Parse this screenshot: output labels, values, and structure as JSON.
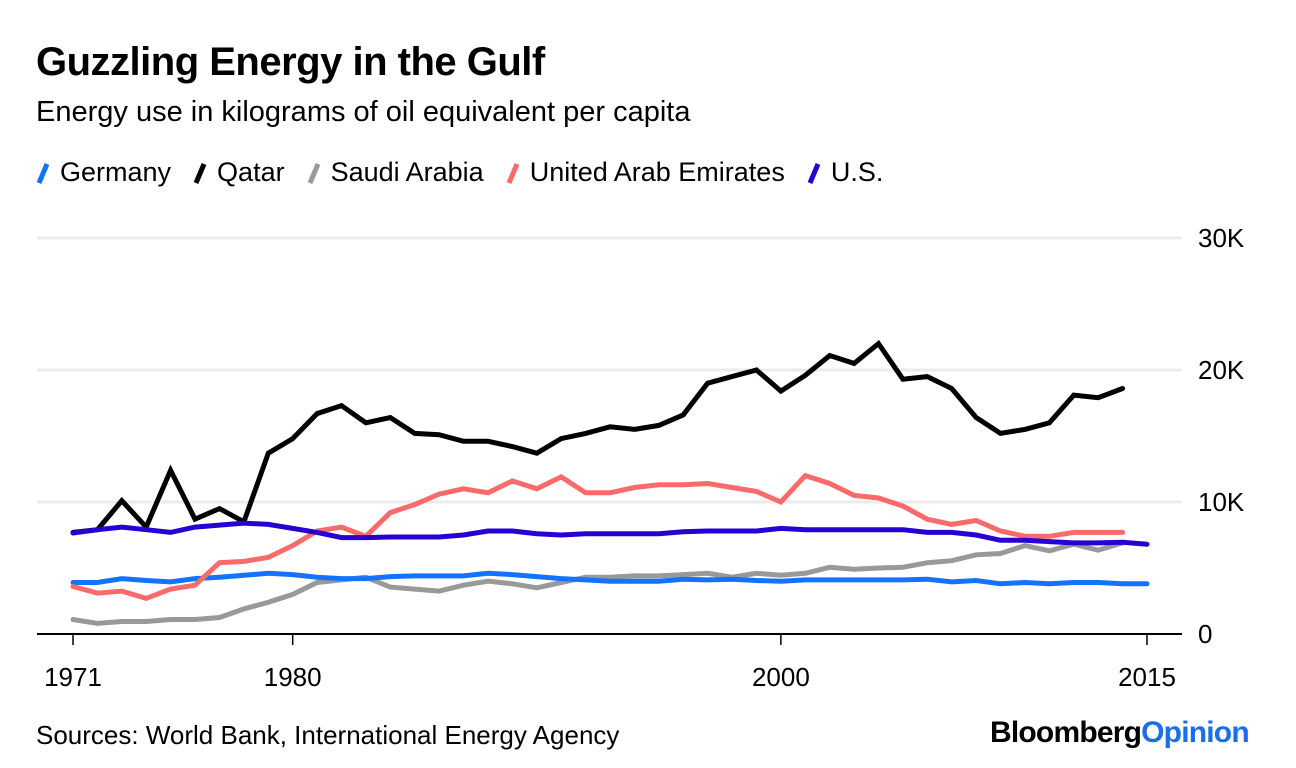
{
  "header": {
    "title": "Guzzling Energy in the Gulf",
    "subtitle": "Energy use in kilograms of oil equivalent per capita"
  },
  "footer": {
    "source": "Sources: World Bank, International Energy Agency",
    "brand_primary": "Bloomberg",
    "brand_secondary": "Opinion",
    "brand_secondary_color": "#1a6cf0"
  },
  "chart_data": {
    "type": "line",
    "title": "Guzzling Energy in the Gulf",
    "subtitle": "Energy use in kilograms of oil equivalent per capita",
    "xlabel": "",
    "ylabel": "",
    "xlim": [
      1971,
      2015
    ],
    "ylim": [
      0,
      30000
    ],
    "x_ticks": [
      1971,
      1980,
      2000,
      2015
    ],
    "x_tick_labels": [
      "1971",
      "1980",
      "2000",
      "2015"
    ],
    "y_ticks": [
      0,
      10000,
      20000,
      30000
    ],
    "y_tick_labels": [
      "0",
      "10K",
      "20K",
      "30K"
    ],
    "y_axis_side": "right",
    "grid": true,
    "legend_position": "top-left",
    "x": [
      1971,
      1972,
      1973,
      1974,
      1975,
      1976,
      1977,
      1978,
      1979,
      1980,
      1981,
      1982,
      1983,
      1984,
      1985,
      1986,
      1987,
      1988,
      1989,
      1990,
      1991,
      1992,
      1993,
      1994,
      1995,
      1996,
      1997,
      1998,
      1999,
      2000,
      2001,
      2002,
      2003,
      2004,
      2005,
      2006,
      2007,
      2008,
      2009,
      2010,
      2011,
      2012,
      2013,
      2014,
      2015
    ],
    "series": [
      {
        "name": "Germany",
        "color": "#1373ff",
        "values": [
          3900,
          3900,
          4200,
          4050,
          3950,
          4200,
          4300,
          4450,
          4600,
          4500,
          4300,
          4200,
          4200,
          4350,
          4400,
          4400,
          4400,
          4600,
          4500,
          4350,
          4200,
          4100,
          4000,
          4000,
          4000,
          4150,
          4100,
          4150,
          4050,
          4000,
          4100,
          4100,
          4100,
          4100,
          4100,
          4150,
          3950,
          4050,
          3800,
          3900,
          3800,
          3900,
          3900,
          3800,
          3800
        ]
      },
      {
        "name": "Qatar",
        "color": "#000000",
        "values": [
          7700,
          7900,
          10100,
          8100,
          12400,
          8700,
          9500,
          8500,
          13700,
          14800,
          16700,
          17300,
          16000,
          16400,
          15200,
          15100,
          14600,
          14600,
          14200,
          13700,
          14800,
          15200,
          15700,
          15500,
          15800,
          16600,
          19000,
          19500,
          20000,
          18400,
          19600,
          21100,
          20500,
          22000,
          19300,
          19500,
          18600,
          16400,
          15200,
          15500,
          16000,
          18100,
          17900,
          18600,
          null
        ]
      },
      {
        "name": "Saudi Arabia",
        "color": "#999999",
        "values": [
          1100,
          800,
          950,
          950,
          1100,
          1100,
          1250,
          1900,
          2400,
          3000,
          3900,
          4100,
          4300,
          3550,
          3400,
          3250,
          3700,
          4000,
          3800,
          3500,
          3900,
          4300,
          4300,
          4400,
          4400,
          4500,
          4600,
          4300,
          4600,
          4450,
          4600,
          5050,
          4900,
          5000,
          5050,
          5400,
          5550,
          6000,
          6100,
          6700,
          6300,
          6800,
          6350,
          6900,
          null
        ]
      },
      {
        "name": "United Arab Emirates",
        "color": "#f96b6b",
        "values": [
          3600,
          3100,
          3250,
          2700,
          3400,
          3700,
          5400,
          5500,
          5800,
          6700,
          7800,
          8100,
          7400,
          9200,
          9800,
          10600,
          11000,
          10700,
          11600,
          11000,
          11900,
          10700,
          10700,
          11100,
          11300,
          11300,
          11400,
          11100,
          10800,
          10000,
          12000,
          11400,
          10500,
          10300,
          9700,
          8700,
          8300,
          8600,
          7800,
          7400,
          7400,
          7700,
          7700,
          7700,
          null
        ]
      },
      {
        "name": "U.S.",
        "color": "#2800d2",
        "values": [
          7650,
          7900,
          8100,
          7900,
          7700,
          8100,
          8250,
          8400,
          8300,
          8000,
          7700,
          7300,
          7300,
          7350,
          7350,
          7350,
          7500,
          7800,
          7800,
          7600,
          7500,
          7600,
          7600,
          7600,
          7600,
          7750,
          7800,
          7800,
          7800,
          8000,
          7900,
          7900,
          7900,
          7900,
          7900,
          7700,
          7700,
          7500,
          7100,
          7100,
          7000,
          6900,
          6900,
          6950,
          6800
        ]
      }
    ]
  }
}
